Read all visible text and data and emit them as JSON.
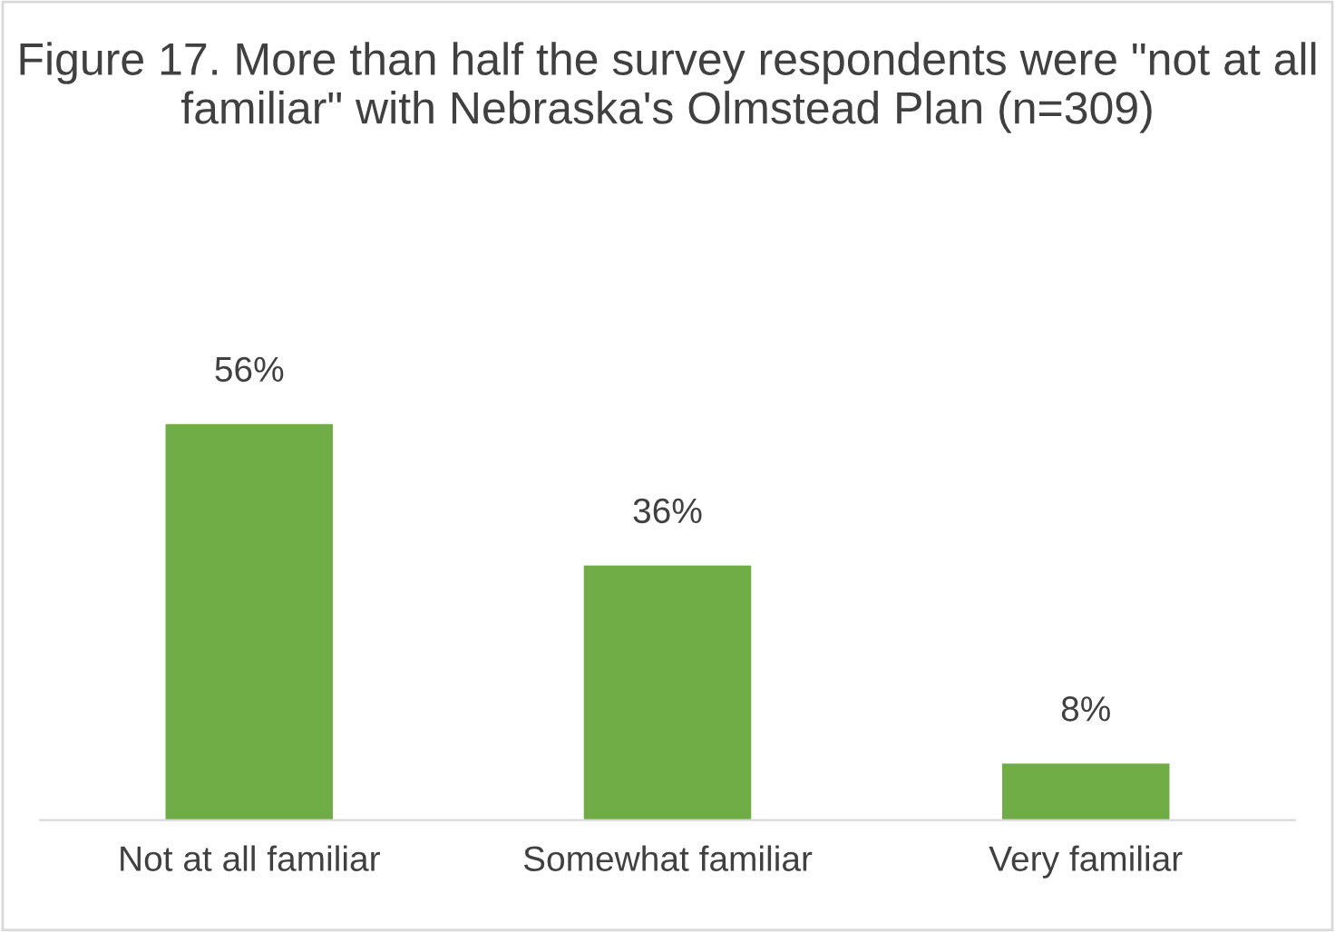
{
  "chart_data": {
    "type": "bar",
    "title": "Figure 17. More than half the survey respondents were \"not at all familiar\" with Nebraska's Olmstead Plan (n=309)",
    "categories": [
      "Not at all familiar",
      "Somewhat familiar",
      "Very familiar"
    ],
    "values": [
      56,
      36,
      8
    ],
    "value_labels": [
      "56%",
      "36%",
      "8%"
    ],
    "color": "#70ad47",
    "grid": false,
    "legend": false
  }
}
